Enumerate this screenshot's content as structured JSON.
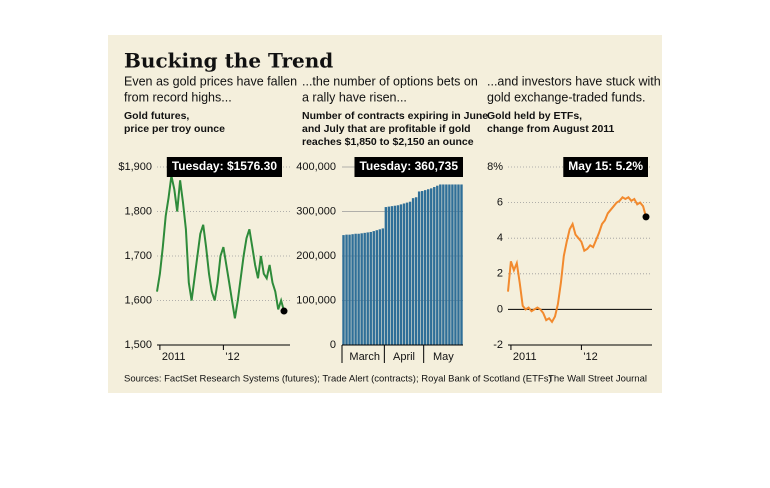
{
  "title": "Bucking the Trend",
  "source": "Sources: FactSet Research Systems (futures); Trade Alert (contracts); Royal Bank of Scotland (ETFs)",
  "credit": "The Wall Street Journal",
  "chart_data": [
    {
      "type": "line",
      "subtitle": [
        "Even as gold prices have fallen",
        "from record highs..."
      ],
      "ylabel": [
        "Gold futures,",
        "price per troy ounce"
      ],
      "annotation": "Tuesday: $1576.30",
      "color": "#2e8b3a",
      "grid": true,
      "values": [
        1620,
        1660,
        1720,
        1790,
        1830,
        1880,
        1850,
        1800,
        1870,
        1820,
        1760,
        1640,
        1600,
        1650,
        1700,
        1750,
        1770,
        1720,
        1660,
        1620,
        1600,
        1640,
        1700,
        1720,
        1680,
        1640,
        1600,
        1560,
        1600,
        1650,
        1700,
        1740,
        1760,
        1720,
        1680,
        1650,
        1700,
        1660,
        1650,
        1680,
        1640,
        1620,
        1580,
        1600,
        1576.3
      ],
      "xlim": [
        0,
        44
      ],
      "xticks": [
        {
          "value": 1,
          "label": "2011"
        },
        {
          "value": 23,
          "label": "'12"
        }
      ],
      "ylim": [
        1500,
        1900
      ],
      "yticks": [
        {
          "value": 1500,
          "label": "1,500"
        },
        {
          "value": 1600,
          "label": "1,600"
        },
        {
          "value": 1700,
          "label": "1,700"
        },
        {
          "value": 1800,
          "label": "1,800"
        },
        {
          "value": 1900,
          "label": "$1,900"
        }
      ]
    },
    {
      "type": "bar",
      "subtitle": [
        "...the number of options bets on",
        "a rally have risen..."
      ],
      "ylabel": [
        "Number of contracts expiring in June",
        "and July that are profitable if gold",
        "reaches $1,850 to $2,150 an ounce"
      ],
      "annotation": "Tuesday: 360,735",
      "color": "#2f6f98",
      "grid": true,
      "categories": [
        null,
        null,
        null,
        null,
        null,
        null,
        null,
        "March",
        null,
        null,
        null,
        null,
        null,
        null,
        null,
        null,
        null,
        null,
        null,
        null,
        "April",
        null,
        null,
        null,
        null,
        null,
        null,
        null,
        null,
        null,
        null,
        null,
        null,
        "May",
        null,
        null,
        null,
        null,
        null,
        null
      ],
      "values": [
        247000,
        248000,
        248000,
        249000,
        250000,
        250000,
        251000,
        252000,
        253000,
        254000,
        256000,
        258000,
        260000,
        262000,
        310000,
        311000,
        312000,
        313000,
        314000,
        316000,
        318000,
        320000,
        322000,
        330000,
        332000,
        345000,
        346000,
        348000,
        350000,
        352000,
        355000,
        358000,
        360735,
        360735,
        360735,
        360735,
        360735,
        360735,
        360735,
        360735
      ],
      "ylim": [
        0,
        400000
      ],
      "yticks": [
        0,
        {
          "value": 100000,
          "label": "100,000"
        },
        {
          "value": 200000,
          "label": "200,000"
        },
        {
          "value": 300000,
          "label": "300,000"
        },
        {
          "value": 400000,
          "label": "400,000"
        }
      ]
    },
    {
      "type": "line",
      "subtitle": [
        "...and investors have stuck with",
        "gold exchange-traded funds."
      ],
      "ylabel": [
        "Gold held by ETFs,",
        "change from August 2011"
      ],
      "annotation": "May 15: 5.2%",
      "color": "#f28a2e",
      "grid": true,
      "values": [
        1.0,
        2.7,
        2.2,
        2.6,
        1.5,
        0.2,
        0,
        0.1,
        -0.1,
        0,
        0.1,
        0,
        -0.2,
        -0.6,
        -0.5,
        -0.7,
        -0.4,
        0.3,
        1.5,
        3.0,
        3.8,
        4.5,
        4.8,
        4.2,
        4.0,
        3.8,
        3.3,
        3.4,
        3.6,
        3.5,
        3.9,
        4.3,
        4.8,
        5.0,
        5.4,
        5.6,
        5.8,
        6.0,
        6.1,
        6.3,
        6.2,
        6.3,
        6.1,
        6.2,
        5.9,
        6.0,
        5.8,
        5.2
      ],
      "xlim": [
        0,
        47
      ],
      "xticks": [
        {
          "value": 1,
          "label": "2011"
        },
        {
          "value": 25,
          "label": "'12"
        }
      ],
      "ylim": [
        -2,
        8
      ],
      "yticks": [
        -2,
        0,
        2,
        4,
        6,
        {
          "value": 8,
          "label": "8%"
        }
      ]
    }
  ]
}
